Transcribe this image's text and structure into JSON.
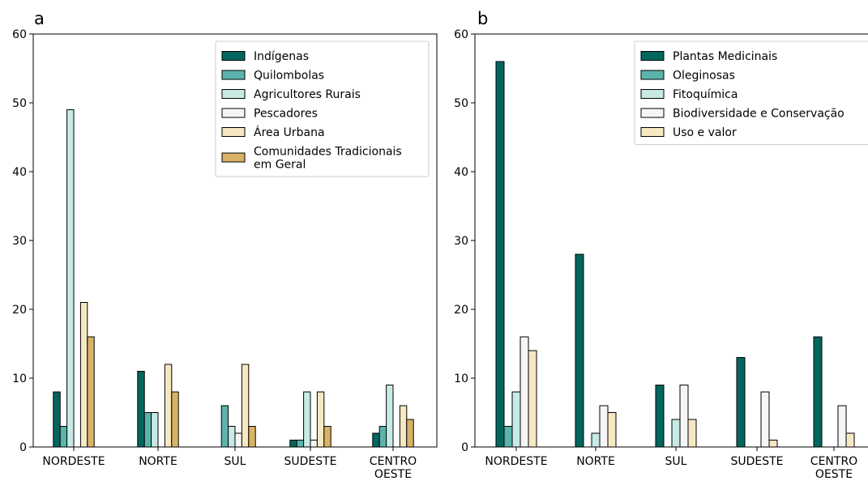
{
  "chart_data": [
    {
      "type": "bar",
      "panel_label": "a",
      "categories": [
        "NORDESTE",
        "NORTE",
        "SUL",
        "SUDESTE",
        "CENTRO\nOESTE"
      ],
      "series": [
        {
          "name": "Indígenas",
          "color": "#01665e",
          "values": [
            8,
            11,
            0,
            1,
            2
          ]
        },
        {
          "name": "Quilombolas",
          "color": "#5ab4ac",
          "values": [
            3,
            5,
            6,
            1,
            3
          ]
        },
        {
          "name": "Agricultores Rurais",
          "color": "#c7eae5",
          "values": [
            49,
            5,
            3,
            8,
            9
          ]
        },
        {
          "name": "Pescadores",
          "color": "#f5f5f5",
          "values": [
            0,
            0,
            2,
            1,
            0
          ]
        },
        {
          "name": "Área Urbana",
          "color": "#f6e8c3",
          "values": [
            21,
            12,
            12,
            8,
            6
          ]
        },
        {
          "name": "Comunidades Tradicionais\nem Geral",
          "color": "#d8b365",
          "values": [
            16,
            8,
            3,
            3,
            4
          ]
        }
      ],
      "ylim": [
        0,
        60
      ],
      "yticks": [
        0,
        10,
        20,
        30,
        40,
        50,
        60
      ],
      "legend_position": "top-right",
      "grid": false
    },
    {
      "type": "bar",
      "panel_label": "b",
      "categories": [
        "NORDESTE",
        "NORTE",
        "SUL",
        "SUDESTE",
        "CENTRO\nOESTE"
      ],
      "series": [
        {
          "name": "Plantas Medicinais",
          "color": "#01665e",
          "values": [
            56,
            28,
            9,
            13,
            16
          ]
        },
        {
          "name": "Oleginosas",
          "color": "#5ab4ac",
          "values": [
            3,
            0,
            0,
            0,
            0
          ]
        },
        {
          "name": "Fitoquímica",
          "color": "#c7eae5",
          "values": [
            8,
            2,
            4,
            0,
            0
          ]
        },
        {
          "name": "Biodiversidade e Conservação",
          "color": "#f5f5f5",
          "values": [
            16,
            6,
            9,
            8,
            6
          ]
        },
        {
          "name": "Uso e valor",
          "color": "#f6e8c3",
          "values": [
            14,
            5,
            4,
            1,
            2
          ]
        }
      ],
      "ylim": [
        0,
        60
      ],
      "yticks": [
        0,
        10,
        20,
        30,
        40,
        50,
        60
      ],
      "legend_position": "top-right",
      "grid": false
    }
  ]
}
